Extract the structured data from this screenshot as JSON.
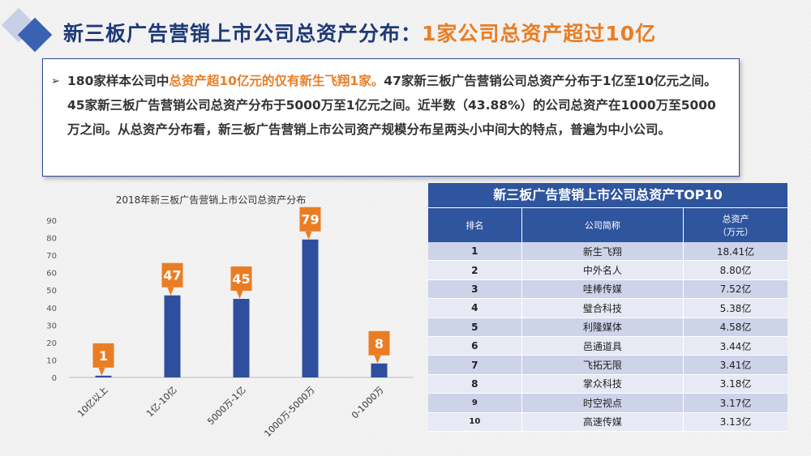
{
  "title": {
    "main": "新三板广告营销上市公司总资产分布：",
    "highlight": "1家公司总资产超过10亿"
  },
  "summary": {
    "bullet": "➢",
    "parts": [
      {
        "text": "180家样本公司中",
        "hl": false
      },
      {
        "text": "总资产超10亿元的仅有新生飞翔1家。",
        "hl": true
      },
      {
        "text": "47家新三板广告营销公司总资产分布于1亿至10亿元之间。45家新三板广告营销公司总资产分布于5000万至1亿元之间。近半数（43.88%）的公司总资产在1000万至5000万之间。从总资产分布看，新三板广告营销上市公司资产规模分布呈两头小中间大的特点，普遍为中小公司。",
        "hl": false
      }
    ]
  },
  "chart_data": {
    "type": "bar",
    "title": "2018年新三板广告营销上市公司总资产分布",
    "categories": [
      "10亿以上",
      "1亿-10亿",
      "5000万-1亿",
      "1000万-5000万",
      "0-1000万"
    ],
    "values": [
      1,
      47,
      45,
      79,
      8
    ],
    "ylim": [
      0,
      90
    ],
    "yticks": [
      0,
      10,
      20,
      30,
      40,
      50,
      60,
      70,
      80,
      90
    ],
    "bar_color": "#2f4f9e",
    "label_color": "#ea7d24",
    "grid": false,
    "xlabel": "",
    "ylabel": ""
  },
  "table": {
    "title": "新三板广告营销上市公司总资产TOP10",
    "headers": {
      "rank": "排名",
      "name": "公司简称",
      "asset_line1": "总资产",
      "asset_line2": "（万元）"
    },
    "rows": [
      {
        "rank": "1",
        "name": "新生飞翔",
        "asset": "18.41亿"
      },
      {
        "rank": "2",
        "name": "中外名人",
        "asset": "8.80亿"
      },
      {
        "rank": "3",
        "name": "哇棒传媒",
        "asset": "7.52亿"
      },
      {
        "rank": "4",
        "name": "璧合科技",
        "asset": "5.38亿"
      },
      {
        "rank": "5",
        "name": "利隆媒体",
        "asset": "4.58亿"
      },
      {
        "rank": "6",
        "name": "邑通道具",
        "asset": "3.44亿"
      },
      {
        "rank": "7",
        "name": "飞拓无限",
        "asset": "3.41亿"
      },
      {
        "rank": "8",
        "name": "掌众科技",
        "asset": "3.18亿"
      },
      {
        "rank": "9",
        "name": "时空视点",
        "asset": "3.17亿"
      },
      {
        "rank": "10",
        "name": "高速传媒",
        "asset": "3.13亿"
      }
    ]
  }
}
